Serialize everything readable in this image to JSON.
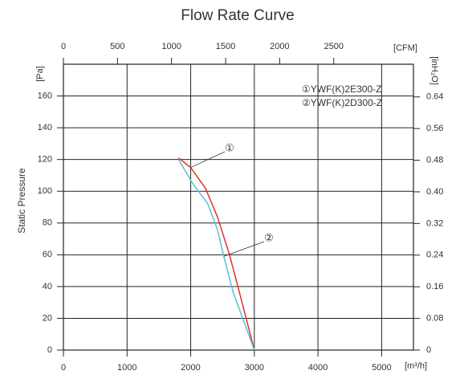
{
  "chart_data": {
    "type": "line",
    "title": "Flow Rate Curve",
    "y_label": "Static Pressure",
    "y_unit": "[Pa]",
    "x_unit": "[m³/h]",
    "x2_unit": "[CFM]",
    "y2_unit": "[inH₂O]",
    "xlim": [
      0,
      5500
    ],
    "xticks": [
      0,
      1000,
      2000,
      3000,
      4000,
      5000
    ],
    "x2lim": [
      0,
      3237
    ],
    "x2ticks": [
      0,
      500,
      1000,
      1500,
      2000,
      2500
    ],
    "ylim": [
      0,
      180
    ],
    "yticks": [
      0,
      20,
      40,
      60,
      80,
      100,
      120,
      140,
      160
    ],
    "y2lim": [
      0,
      0.7226
    ],
    "y2ticks": [
      0,
      0.08,
      0.16,
      0.24,
      0.32,
      {
        "value": 0.4,
        "label": "0.40"
      },
      0.48,
      0.56,
      0.64
    ],
    "grid": true,
    "series": [
      {
        "name": "①YWF(K)2E300-Z",
        "marker": "①",
        "color": "#e0302a",
        "x": [
          1810,
          2000,
          2230,
          2420,
          2610,
          2800,
          3000
        ],
        "values": [
          121,
          115,
          102,
          84,
          60,
          31,
          0
        ]
      },
      {
        "name": "②YWF(K)2D300-Z",
        "marker": "②",
        "color": "#5bbfd6",
        "x": [
          1810,
          2030,
          2270,
          2420,
          2520,
          2670,
          3000
        ],
        "values": [
          120,
          105,
          92,
          76,
          59,
          36,
          0
        ]
      }
    ]
  }
}
